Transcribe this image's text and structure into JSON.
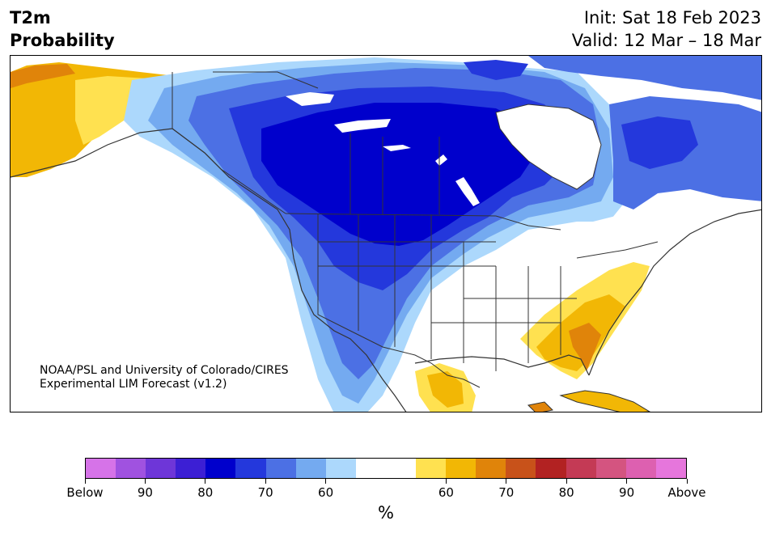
{
  "title": {
    "line1": "T2m",
    "line2": "Probability"
  },
  "header_right": {
    "init": "Init: Sat 18 Feb 2023",
    "valid": "Valid: 12 Mar – 18 Mar"
  },
  "credit": {
    "line1": "NOAA/PSL and University of Colorado/CIRES",
    "line2": "Experimental LIM Forecast (v1.2)"
  },
  "colorbar": {
    "colors": [
      "#d673e8",
      "#a052e0",
      "#6e36d8",
      "#3c1fd4",
      "#0000cc",
      "#2438dc",
      "#4c70e4",
      "#74aaf0",
      "#acd8fc",
      "#ffffff",
      "#ffffff",
      "#ffe150",
      "#f2b705",
      "#e0840a",
      "#c8521a",
      "#b22222",
      "#c43a55",
      "#d45480",
      "#dd60b0",
      "#e676dc"
    ],
    "tick_labels": [
      "Below",
      "90",
      "80",
      "70",
      "60",
      "60",
      "70",
      "80",
      "90",
      "Above"
    ],
    "unit": "%"
  },
  "map": {
    "colors": {
      "ocean": "#ffffff",
      "below_60": "#acd8fc",
      "below_70": "#74aaf0",
      "below_75": "#4c70e4",
      "below_80": "#2438dc",
      "below_85": "#0000cc",
      "above_60": "#ffe150",
      "above_65": "#f2b705",
      "above_70": "#e0840a",
      "border": "#333333"
    }
  }
}
